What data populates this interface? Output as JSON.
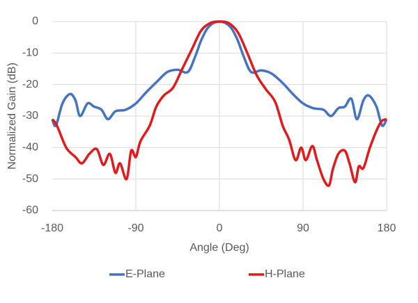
{
  "chart_data": {
    "type": "line",
    "x_label": "Angle (Deg)",
    "y_label": "Normalized Gain (dB)",
    "xlim": [
      -180,
      180
    ],
    "xticks": [
      -180,
      -90,
      0,
      90,
      180
    ],
    "ylim": [
      -60,
      0
    ],
    "yticks": [
      0,
      -10,
      -20,
      -30,
      -40,
      -50,
      -60
    ],
    "grid": true,
    "legend": "bottom",
    "series": [
      {
        "name": "E-Plane",
        "color": "#4472c4",
        "x": [
          -180,
          -176,
          -169,
          -161,
          -155,
          -150,
          -142,
          -135,
          -127,
          -120,
          -112,
          -101,
          -90,
          -79,
          -67,
          -56,
          -45,
          -34,
          -26,
          -19,
          -11,
          0,
          11,
          19,
          26,
          34,
          45,
          56,
          68,
          79,
          90,
          101,
          112,
          120,
          128,
          135,
          142,
          148,
          155,
          161,
          169,
          175,
          180
        ],
        "values": [
          -31,
          -33,
          -26,
          -23,
          -25,
          -30,
          -26,
          -27,
          -28,
          -31,
          -28.5,
          -28,
          -26,
          -22.5,
          -19,
          -16,
          -15.3,
          -16,
          -11,
          -5.5,
          -1.5,
          0,
          -1.5,
          -5.5,
          -11,
          -16,
          -15.5,
          -16.5,
          -19.5,
          -23,
          -26,
          -27.5,
          -28,
          -30,
          -27.5,
          -27,
          -24.5,
          -31,
          -25,
          -23.5,
          -27,
          -33,
          -31
        ]
      },
      {
        "name": "H-Plane",
        "color": "#e31a1c",
        "x": [
          -180,
          -175,
          -165,
          -155,
          -148,
          -140,
          -132,
          -125,
          -118,
          -112,
          -107,
          -100,
          -95,
          -90,
          -85,
          -75,
          -68,
          -60,
          -50,
          -40,
          -30,
          -20,
          -10,
          0,
          10,
          20,
          30,
          40,
          50,
          60,
          68,
          75,
          82,
          88,
          93,
          100,
          105,
          112,
          118,
          122,
          128,
          135,
          140,
          146,
          150,
          155,
          162,
          170,
          175,
          180
        ],
        "values": [
          -31,
          -33,
          -40,
          -43,
          -45,
          -42,
          -40.5,
          -45.5,
          -42,
          -48,
          -45,
          -50,
          -41,
          -43,
          -38,
          -33,
          -27,
          -23.5,
          -21,
          -15,
          -9,
          -3,
          -0.5,
          0,
          -0.5,
          -3.5,
          -10,
          -17,
          -21.5,
          -25.5,
          -33,
          -37.5,
          -44,
          -40,
          -44,
          -39.5,
          -44,
          -50,
          -52,
          -47,
          -42,
          -41,
          -45,
          -51,
          -46,
          -46.5,
          -40,
          -34,
          -31.5,
          -31
        ]
      }
    ]
  }
}
